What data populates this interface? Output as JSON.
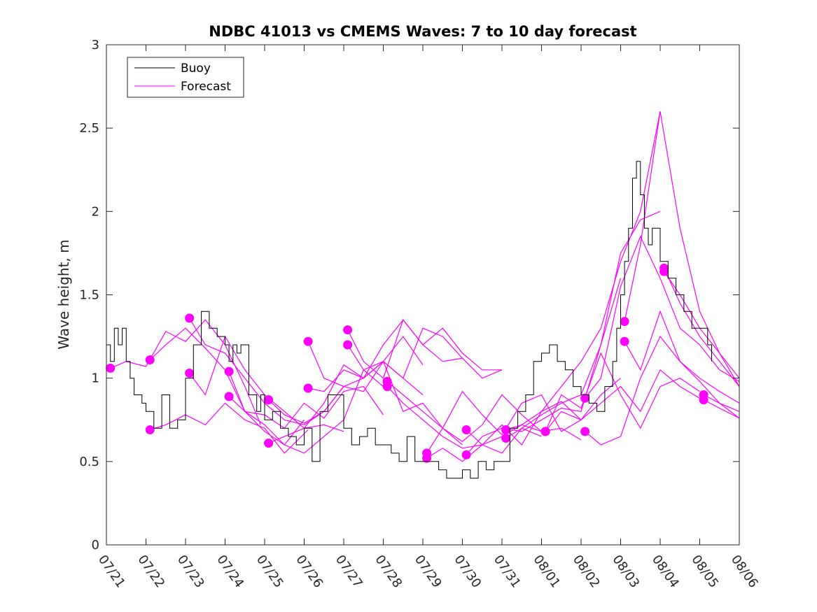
{
  "chart_data": {
    "type": "line",
    "title": "NDBC 41013 vs CMEMS Waves: 7 to 10 day forecast",
    "xlabel": "",
    "ylabel": "Wave height, m",
    "xlim": [
      0,
      16
    ],
    "ylim": [
      0,
      3
    ],
    "grid": false,
    "legend_position": "top-left",
    "x_tick_labels": [
      "07/21",
      "07/22",
      "07/23",
      "07/24",
      "07/25",
      "07/26",
      "07/27",
      "07/28",
      "07/29",
      "07/30",
      "07/31",
      "08/01",
      "08/02",
      "08/03",
      "08/04",
      "08/05",
      "08/06"
    ],
    "y_ticks": [
      0,
      0.5,
      1,
      1.5,
      2,
      2.5,
      3
    ],
    "y_tick_labels": [
      "0",
      "0.5",
      "1",
      "1.5",
      "2",
      "2.5",
      "3"
    ],
    "colors": {
      "buoy": "#000000",
      "forecast": "#ff00ff"
    },
    "legend": [
      {
        "label": "Buoy",
        "color": "#000000"
      },
      {
        "label": "Forecast",
        "color": "#ff00ff"
      }
    ],
    "buoy": {
      "name": "Buoy",
      "x": [
        0.0,
        0.1,
        0.2,
        0.3,
        0.4,
        0.5,
        0.6,
        0.7,
        0.8,
        0.9,
        1.0,
        1.2,
        1.4,
        1.6,
        1.8,
        2.0,
        2.2,
        2.4,
        2.6,
        2.8,
        3.0,
        3.1,
        3.2,
        3.3,
        3.4,
        3.6,
        3.8,
        3.9,
        4.0,
        4.2,
        4.4,
        4.6,
        4.8,
        5.0,
        5.2,
        5.4,
        5.6,
        5.8,
        6.0,
        6.2,
        6.4,
        6.6,
        6.8,
        7.0,
        7.2,
        7.4,
        7.6,
        7.8,
        8.0,
        8.2,
        8.4,
        8.6,
        8.8,
        9.0,
        9.2,
        9.4,
        9.6,
        9.8,
        10.0,
        10.2,
        10.4,
        10.6,
        10.8,
        11.0,
        11.2,
        11.4,
        11.6,
        11.8,
        12.0,
        12.2,
        12.4,
        12.6,
        12.8,
        12.9,
        13.0,
        13.1,
        13.2,
        13.3,
        13.4,
        13.5,
        13.6,
        13.7,
        13.8,
        14.0,
        14.2,
        14.4,
        14.6,
        14.8,
        15.0,
        15.2,
        15.3
      ],
      "values": [
        1.2,
        1.1,
        1.3,
        1.2,
        1.3,
        1.1,
        1.0,
        0.9,
        0.9,
        0.85,
        0.8,
        0.7,
        0.9,
        0.7,
        0.75,
        1.0,
        1.2,
        1.4,
        1.3,
        1.25,
        1.2,
        1.1,
        1.2,
        1.15,
        1.2,
        0.9,
        0.8,
        0.9,
        0.75,
        0.8,
        0.7,
        0.65,
        0.6,
        0.7,
        0.5,
        0.8,
        0.9,
        0.9,
        0.7,
        0.6,
        0.65,
        0.7,
        0.6,
        0.6,
        0.55,
        0.5,
        0.65,
        0.5,
        0.5,
        0.5,
        0.45,
        0.4,
        0.4,
        0.45,
        0.4,
        0.5,
        0.45,
        0.5,
        0.5,
        0.7,
        0.8,
        0.9,
        1.1,
        1.15,
        1.2,
        1.1,
        1.05,
        0.95,
        0.9,
        0.85,
        0.8,
        0.95,
        1.1,
        1.3,
        1.5,
        1.7,
        1.9,
        2.2,
        2.3,
        2.1,
        1.9,
        1.8,
        1.9,
        1.7,
        1.6,
        1.5,
        1.4,
        1.3,
        1.3,
        1.2,
        1.1
      ]
    },
    "forecast": {
      "name": "Forecast",
      "lines": [
        {
          "x": [
            0.1,
            0.5,
            1.0,
            1.5,
            2.0,
            2.5,
            3.0,
            3.5,
            3.9
          ],
          "values": [
            1.06,
            1.1,
            1.07,
            1.28,
            1.22,
            1.35,
            1.2,
            0.95,
            0.72
          ]
        },
        {
          "x": [
            1.1,
            1.5,
            2.0,
            2.5,
            3.0,
            3.5,
            4.0,
            4.5,
            5.0
          ],
          "values": [
            1.11,
            1.2,
            1.3,
            1.18,
            1.05,
            0.8,
            0.68,
            0.6,
            0.75
          ]
        },
        {
          "x": [
            1.1,
            1.5,
            2.0,
            2.5,
            3.0,
            3.5,
            4.0,
            4.5,
            5.1
          ],
          "values": [
            0.69,
            0.72,
            0.78,
            0.72,
            0.85,
            0.75,
            0.7,
            0.55,
            0.69
          ]
        },
        {
          "x": [
            2.1,
            2.5,
            3.0,
            3.5,
            4.0,
            4.5,
            5.0,
            5.5,
            6.0
          ],
          "values": [
            1.36,
            1.2,
            1.15,
            1.0,
            0.85,
            0.75,
            0.72,
            0.8,
            0.95
          ]
        },
        {
          "x": [
            2.1,
            2.5,
            3.0,
            3.5,
            4.0,
            4.5,
            5.0,
            5.5,
            6.0
          ],
          "values": [
            1.03,
            0.9,
            1.25,
            1.05,
            0.9,
            0.8,
            0.7,
            0.72,
            0.68
          ]
        },
        {
          "x": [
            3.1,
            3.5,
            4.0,
            4.5,
            5.0,
            5.5,
            6.0,
            6.5,
            7.0
          ],
          "values": [
            1.04,
            0.8,
            0.72,
            0.6,
            0.55,
            0.65,
            0.75,
            1.05,
            0.95
          ]
        },
        {
          "x": [
            3.1,
            3.5,
            4.0,
            4.5,
            5.0,
            5.5,
            6.0,
            6.5,
            7.0
          ],
          "values": [
            0.89,
            0.8,
            0.78,
            0.7,
            0.85,
            0.76,
            0.92,
            0.95,
            0.78
          ]
        },
        {
          "x": [
            4.1,
            4.5,
            5.0,
            5.5,
            6.0,
            6.5,
            7.0,
            7.5,
            8.0
          ],
          "values": [
            0.87,
            0.78,
            0.73,
            0.8,
            0.95,
            0.92,
            1.1,
            1.25,
            1.08
          ]
        },
        {
          "x": [
            4.1,
            4.5,
            5.0,
            5.5,
            6.0,
            6.5,
            7.0,
            7.5,
            8.0
          ],
          "values": [
            0.61,
            0.65,
            0.7,
            0.85,
            1.08,
            1.0,
            1.1,
            1.0,
            0.9
          ]
        },
        {
          "x": [
            5.1,
            5.5,
            6.0,
            6.5,
            7.0,
            7.5,
            8.0,
            8.5,
            9.0
          ],
          "values": [
            1.22,
            1.0,
            0.95,
            1.0,
            1.1,
            0.8,
            0.85,
            0.7,
            0.6
          ]
        },
        {
          "x": [
            5.1,
            5.5,
            6.0,
            6.5,
            7.0,
            7.5,
            8.0,
            8.5,
            9.0
          ],
          "values": [
            0.94,
            0.92,
            1.05,
            1.0,
            1.2,
            1.35,
            1.2,
            1.1,
            1.12
          ]
        },
        {
          "x": [
            6.1,
            6.5,
            7.0,
            7.5,
            8.0,
            8.5,
            9.0,
            9.5,
            10.0
          ],
          "values": [
            1.29,
            1.1,
            1.0,
            1.35,
            1.2,
            1.3,
            1.15,
            1.05,
            1.05
          ]
        },
        {
          "x": [
            6.1,
            6.5,
            7.0,
            7.5,
            8.0,
            8.5,
            9.0,
            9.5,
            10.0
          ],
          "values": [
            1.2,
            1.05,
            1.1,
            1.0,
            1.3,
            1.25,
            1.12,
            1.0,
            1.05
          ]
        },
        {
          "x": [
            7.1,
            7.5,
            8.0,
            8.5,
            9.0,
            9.5,
            10.0,
            10.5,
            11.0
          ],
          "values": [
            0.98,
            0.9,
            0.8,
            0.7,
            0.62,
            0.72,
            0.9,
            0.78,
            0.68
          ]
        },
        {
          "x": [
            7.1,
            7.5,
            8.0,
            8.5,
            9.0,
            9.5,
            10.0,
            10.5,
            11.0
          ],
          "values": [
            0.95,
            0.85,
            0.75,
            0.65,
            0.58,
            0.6,
            0.55,
            0.7,
            0.65
          ]
        },
        {
          "x": [
            8.1,
            8.5,
            9.0,
            9.5,
            10.0,
            10.5,
            11.0,
            11.5,
            12.0
          ],
          "values": [
            0.55,
            0.7,
            0.92,
            0.78,
            0.66,
            0.85,
            0.9,
            0.68,
            0.75
          ]
        },
        {
          "x": [
            8.1,
            8.5,
            9.0,
            9.5,
            10.0,
            10.5,
            11.0,
            11.5,
            12.0
          ],
          "values": [
            0.52,
            0.58,
            0.5,
            0.6,
            0.65,
            0.72,
            0.68,
            0.7,
            0.63
          ]
        },
        {
          "x": [
            9.1,
            9.5,
            10.0,
            10.5,
            11.0,
            11.5,
            12.0,
            12.5,
            13.0
          ],
          "values": [
            0.69,
            0.6,
            0.72,
            0.6,
            0.8,
            0.86,
            0.75,
            0.9,
            1.0
          ]
        },
        {
          "x": [
            9.1,
            9.5,
            10.0,
            10.5,
            11.0,
            11.5,
            12.0,
            12.5,
            13.0
          ],
          "values": [
            0.54,
            0.65,
            0.7,
            0.68,
            0.75,
            0.82,
            0.8,
            1.2,
            1.6
          ]
        },
        {
          "x": [
            10.1,
            10.5,
            11.0,
            11.5,
            12.0,
            12.5,
            13.0,
            13.5,
            14.0
          ],
          "values": [
            0.69,
            0.72,
            0.8,
            0.95,
            1.1,
            1.3,
            1.7,
            2.0,
            2.6
          ]
        },
        {
          "x": [
            10.1,
            10.5,
            11.0,
            11.5,
            12.0,
            12.5,
            13.0,
            13.5,
            14.0
          ],
          "values": [
            0.64,
            0.7,
            0.78,
            0.85,
            0.9,
            1.2,
            1.75,
            1.95,
            2.0
          ]
        },
        {
          "x": [
            11.1,
            11.5,
            12.0,
            12.5,
            13.0,
            13.5,
            14.0,
            14.5,
            15.0
          ],
          "values": [
            0.68,
            0.8,
            0.75,
            0.85,
            0.95,
            0.8,
            1.05,
            0.95,
            0.88
          ]
        },
        {
          "x": [
            11.1,
            11.5,
            12.0,
            12.5,
            13.0,
            13.5,
            14.0,
            14.5,
            15.0
          ],
          "values": [
            0.68,
            0.9,
            0.82,
            1.15,
            0.9,
            0.7,
            0.95,
            1.0,
            0.92
          ]
        },
        {
          "x": [
            12.1,
            12.5,
            13.0,
            13.5,
            14.0,
            14.5,
            15.0,
            15.5,
            16.0
          ],
          "values": [
            0.88,
            1.0,
            1.55,
            1.85,
            1.6,
            1.3,
            1.2,
            1.05,
            0.98
          ]
        },
        {
          "x": [
            12.1,
            12.5,
            13.0,
            13.5,
            14.0,
            14.5,
            15.0,
            15.5,
            16.0
          ],
          "values": [
            0.68,
            0.6,
            0.65,
            1.0,
            1.25,
            1.1,
            0.98,
            0.85,
            0.76
          ]
        },
        {
          "x": [
            13.1,
            13.5,
            14.0,
            14.5,
            15.0,
            15.5,
            16.0
          ],
          "values": [
            1.34,
            1.8,
            2.6,
            1.9,
            1.4,
            1.15,
            0.95
          ]
        },
        {
          "x": [
            13.1,
            13.5,
            14.0,
            14.5,
            15.0,
            15.5,
            16.0
          ],
          "values": [
            1.22,
            1.05,
            1.4,
            1.1,
            1.0,
            0.92,
            0.85
          ]
        },
        {
          "x": [
            14.1,
            14.5,
            15.0,
            15.5,
            16.0
          ],
          "values": [
            1.66,
            1.45,
            1.25,
            1.1,
            0.95
          ]
        },
        {
          "x": [
            14.1,
            14.5,
            15.0,
            15.5,
            16.0
          ],
          "values": [
            1.64,
            1.5,
            1.3,
            1.15,
            1.0
          ]
        },
        {
          "x": [
            15.1,
            15.5,
            16.0
          ],
          "values": [
            0.9,
            0.85,
            0.8
          ]
        },
        {
          "x": [
            15.1,
            15.5,
            16.0
          ],
          "values": [
            0.87,
            0.82,
            0.76
          ]
        }
      ]
    }
  }
}
